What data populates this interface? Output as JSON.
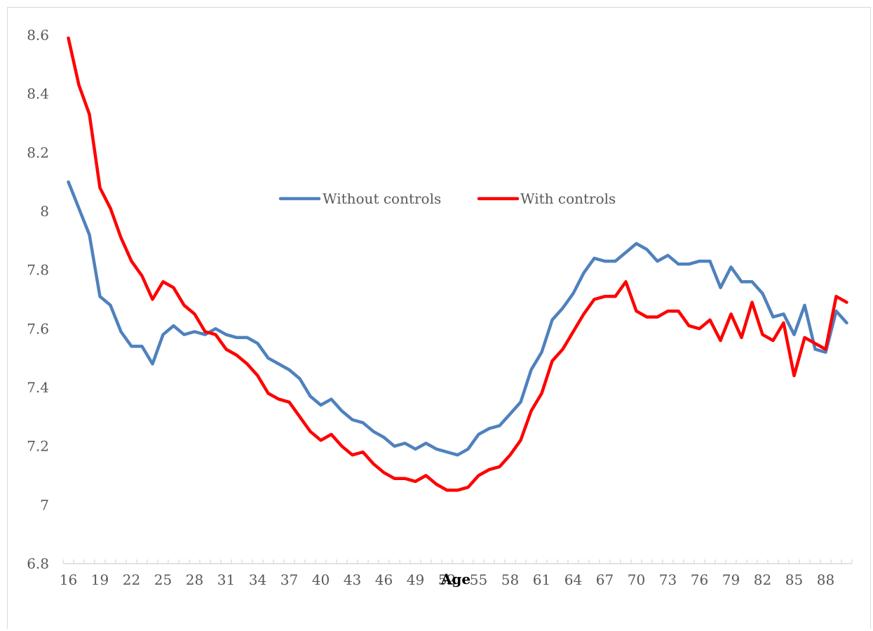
{
  "chart_data": {
    "type": "line",
    "title": "",
    "xlabel": "Age",
    "ylabel": "",
    "ylim": [
      6.8,
      8.6
    ],
    "yticks": [
      "6.8",
      "7",
      "7.2",
      "7.4",
      "7.6",
      "7.8",
      "8",
      "8.2",
      "8.4",
      "8.6"
    ],
    "xtick_labels": [
      "16",
      "19",
      "22",
      "25",
      "28",
      "31",
      "34",
      "37",
      "40",
      "43",
      "46",
      "49",
      "52",
      "55",
      "58",
      "61",
      "64",
      "67",
      "70",
      "73",
      "76",
      "79",
      "82",
      "85",
      "88"
    ],
    "x": [
      16,
      17,
      18,
      19,
      20,
      21,
      22,
      23,
      24,
      25,
      26,
      27,
      28,
      29,
      30,
      31,
      32,
      33,
      34,
      35,
      36,
      37,
      38,
      39,
      40,
      41,
      42,
      43,
      44,
      45,
      46,
      47,
      48,
      49,
      50,
      51,
      52,
      53,
      54,
      55,
      56,
      57,
      58,
      59,
      60,
      61,
      62,
      63,
      64,
      65,
      66,
      67,
      68,
      69,
      70,
      71,
      72,
      73,
      74,
      75,
      76,
      77,
      78,
      79,
      80,
      81,
      82,
      83,
      84,
      85,
      86,
      87,
      88,
      89,
      90
    ],
    "grid": false,
    "legend_position": "inside-center",
    "series": [
      {
        "name": "Without controls",
        "color": "#4f81bd",
        "values": [
          8.1,
          8.01,
          7.92,
          7.71,
          7.68,
          7.59,
          7.54,
          7.54,
          7.48,
          7.58,
          7.61,
          7.58,
          7.59,
          7.58,
          7.6,
          7.58,
          7.57,
          7.57,
          7.55,
          7.5,
          7.48,
          7.46,
          7.43,
          7.37,
          7.34,
          7.36,
          7.32,
          7.29,
          7.28,
          7.25,
          7.23,
          7.2,
          7.21,
          7.19,
          7.21,
          7.19,
          7.18,
          7.17,
          7.19,
          7.24,
          7.26,
          7.27,
          7.31,
          7.35,
          7.46,
          7.52,
          7.63,
          7.67,
          7.72,
          7.79,
          7.84,
          7.83,
          7.83,
          7.86,
          7.89,
          7.87,
          7.83,
          7.85,
          7.82,
          7.82,
          7.83,
          7.83,
          7.74,
          7.81,
          7.76,
          7.76,
          7.72,
          7.64,
          7.65,
          7.58,
          7.68,
          7.53,
          7.52,
          7.66,
          7.62
        ]
      },
      {
        "name": "With controls",
        "color": "#ff0000",
        "values": [
          8.59,
          8.43,
          8.33,
          8.08,
          8.01,
          7.91,
          7.83,
          7.78,
          7.7,
          7.76,
          7.74,
          7.68,
          7.65,
          7.59,
          7.58,
          7.53,
          7.51,
          7.48,
          7.44,
          7.38,
          7.36,
          7.35,
          7.3,
          7.25,
          7.22,
          7.24,
          7.2,
          7.17,
          7.18,
          7.14,
          7.11,
          7.09,
          7.09,
          7.08,
          7.1,
          7.07,
          7.05,
          7.05,
          7.06,
          7.1,
          7.12,
          7.13,
          7.17,
          7.22,
          7.32,
          7.38,
          7.49,
          7.53,
          7.59,
          7.65,
          7.7,
          7.71,
          7.71,
          7.76,
          7.66,
          7.64,
          7.64,
          7.66,
          7.66,
          7.61,
          7.6,
          7.63,
          7.56,
          7.65,
          7.57,
          7.69,
          7.58,
          7.56,
          7.62,
          7.44,
          7.57,
          7.55,
          7.53,
          7.71,
          7.69
        ]
      }
    ]
  }
}
